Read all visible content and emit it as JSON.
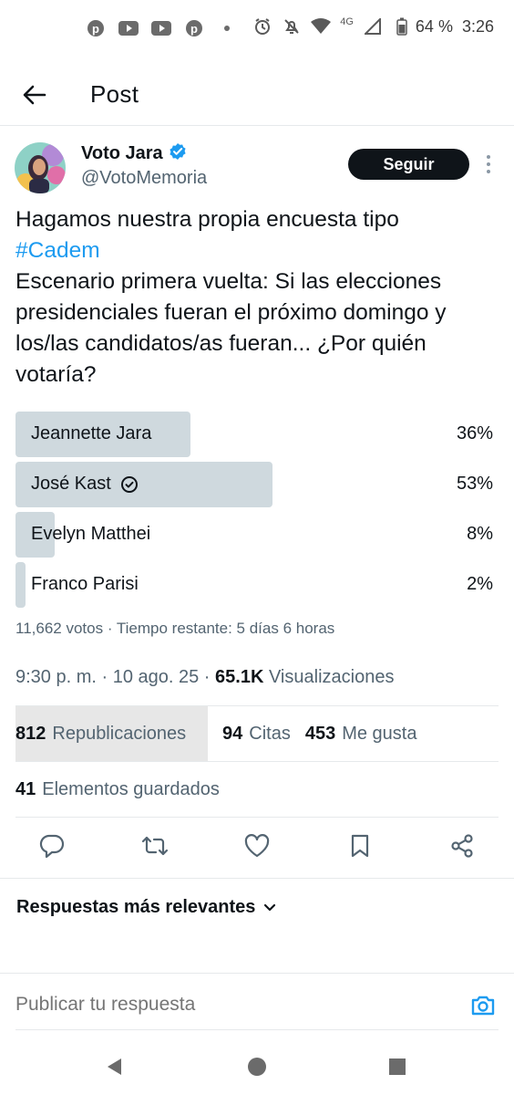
{
  "status_bar": {
    "network": "4G",
    "battery": "64 %",
    "time": "3:26",
    "left_icons": [
      "pinterest-icon",
      "youtube-icon",
      "youtube-icon",
      "pinterest-icon",
      "dot-icon"
    ],
    "right_icons": [
      "alarm-icon",
      "mute-icon",
      "wifi-icon",
      "signal-icon",
      "battery-icon"
    ]
  },
  "header": {
    "title": "Post"
  },
  "post": {
    "author_name": "Voto Jara",
    "author_handle": "@VotoMemoria",
    "follow_label": "Seguir",
    "text_line1": "Hagamos nuestra propia encuesta tipo",
    "hashtag": "#Cadem",
    "text_body": "Escenario primera vuelta: Si las elecciones presidenciales fueran el próximo domingo y los/las candidatos/as fueran... ¿Por quién votaría?",
    "poll": {
      "options": [
        {
          "label": "Jeannette Jara",
          "percent": "36%",
          "fraction": 0.36,
          "selected": false
        },
        {
          "label": "José Kast",
          "percent": "53%",
          "fraction": 0.53,
          "selected": true
        },
        {
          "label": "Evelyn Matthei",
          "percent": "8%",
          "fraction": 0.08,
          "selected": false
        },
        {
          "label": "Franco Parisi",
          "percent": "2%",
          "fraction": 0.02,
          "selected": false
        }
      ],
      "meta": "11,662 votos · Tiempo restante: 5 días 6 horas"
    },
    "timestamp": "9:30 p. m. · 10 ago. 25 · ",
    "views_count": "65.1K",
    "views_label": "Visualizaciones",
    "stats": {
      "reposts_count": "812",
      "reposts_label": "Republicaciones",
      "quotes_count": "94",
      "quotes_label": "Citas",
      "likes_count": "453",
      "likes_label": "Me gusta",
      "bookmarks_count": "41",
      "bookmarks_label": "Elementos guardados"
    }
  },
  "replies": {
    "title": "Respuestas más relevantes"
  },
  "composer": {
    "placeholder": "Publicar tu respuesta"
  },
  "colors": {
    "accent": "#1d9bf0",
    "bar": "#cfd9de",
    "muted": "#536471"
  }
}
